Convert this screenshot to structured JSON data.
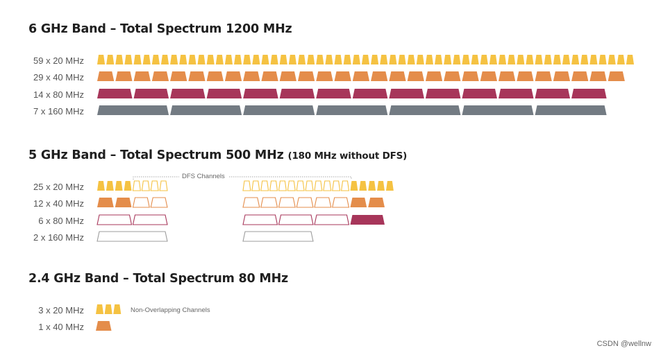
{
  "colors": {
    "ch20": "#f5c242",
    "ch40": "#e48d4b",
    "ch80": "#a7365a",
    "ch160": "#737b83",
    "outline160": "#9c9c9c",
    "dfs_bracket": "#aaaaaa"
  },
  "bands": [
    {
      "id": "6ghz",
      "title": "6 GHz Band – Total Spectrum 1200 MHz",
      "title_note": "",
      "rows": [
        {
          "label": "59 x 20 MHz",
          "width_mhz": 20,
          "total": 59,
          "unit": 20
        },
        {
          "label": "29 x 40 MHz",
          "width_mhz": 40,
          "total": 29,
          "unit": 40
        },
        {
          "label": "14 x 80 MHz",
          "width_mhz": 80,
          "total": 14,
          "unit": 80
        },
        {
          "label": "7 x 160 MHz",
          "width_mhz": 160,
          "total": 7,
          "unit": 160
        }
      ]
    },
    {
      "id": "5ghz",
      "title": "5 GHz Band – Total Spectrum 500 MHz",
      "title_note": "(180 MHz without DFS)",
      "dfs_label": "DFS Channels",
      "rows": [
        {
          "label": "25 x 20 MHz",
          "width_mhz": 20,
          "segments": [
            {
              "count": 4,
              "filled": true
            },
            {
              "count": 4,
              "filled": false
            },
            {
              "count": 12,
              "filled": false
            },
            {
              "count": 5,
              "filled": true
            }
          ]
        },
        {
          "label": "12 x 40 MHz",
          "width_mhz": 40,
          "segments": [
            {
              "count": 2,
              "filled": true
            },
            {
              "count": 2,
              "filled": false
            },
            {
              "count": 6,
              "filled": false
            },
            {
              "count": 2,
              "filled": true
            }
          ]
        },
        {
          "label": "6 x 80 MHz",
          "width_mhz": 80,
          "segments": [
            {
              "count": 0,
              "filled": true
            },
            {
              "count": 2,
              "filled": false
            },
            {
              "count": 3,
              "filled": false
            },
            {
              "count": 1,
              "filled": true
            }
          ]
        },
        {
          "label": "2 x 160 MHz",
          "width_mhz": 160,
          "segments": [
            {
              "count": 0,
              "filled": true
            },
            {
              "count": 1,
              "filled": false
            },
            {
              "count": 1,
              "filled": false
            },
            {
              "count": 0,
              "filled": true
            }
          ]
        }
      ]
    },
    {
      "id": "24ghz",
      "title": "2.4 GHz Band – Total Spectrum 80 MHz",
      "title_note": "",
      "note": "Non-Overlapping Channels",
      "rows": [
        {
          "label": "3 x 20 MHz",
          "width_mhz": 20,
          "total": 3
        },
        {
          "label": "1 x 40 MHz",
          "width_mhz": 40,
          "total": 1
        }
      ]
    }
  ],
  "watermark": "CSDN @wellnw"
}
